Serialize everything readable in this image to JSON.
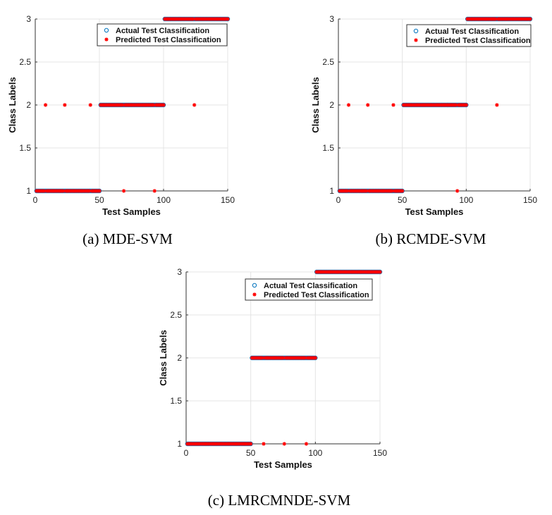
{
  "chart_data": [
    {
      "type": "scatter",
      "caption": "(a) MDE-SVM",
      "xlabel": "Test Samples",
      "ylabel": "Class Labels",
      "xlim": [
        0,
        150
      ],
      "ylim": [
        1,
        3
      ],
      "xticks": [
        "0",
        "50",
        "100",
        "150"
      ],
      "yticks": [
        "1",
        "1.5",
        "2",
        "2.5",
        "3"
      ],
      "grid": true,
      "legend_position": "top-right",
      "series": [
        {
          "name": "Actual Test Classification",
          "marker": "circle",
          "color": "#0072bd",
          "segments": [
            {
              "x_start": 1,
              "x_end": 50,
              "y": 1
            },
            {
              "x_start": 51,
              "x_end": 100,
              "y": 2
            },
            {
              "x_start": 101,
              "x_end": 150,
              "y": 3
            }
          ]
        },
        {
          "name": "Predicted Test Classification",
          "marker": "asterisk",
          "color": "#ff0000",
          "segments": [
            {
              "x_start": 1,
              "x_end": 50,
              "y": 1
            },
            {
              "x_start": 51,
              "x_end": 100,
              "y": 2
            },
            {
              "x_start": 101,
              "x_end": 150,
              "y": 3
            }
          ],
          "misclassified": [
            {
              "x": 8,
              "y": 2
            },
            {
              "x": 23,
              "y": 2
            },
            {
              "x": 43,
              "y": 2
            },
            {
              "x": 69,
              "y": 1
            },
            {
              "x": 93,
              "y": 1
            },
            {
              "x": 124,
              "y": 2
            }
          ]
        }
      ]
    },
    {
      "type": "scatter",
      "caption": "(b) RCMDE-SVM",
      "xlabel": "Test Samples",
      "ylabel": "Class Labels",
      "xlim": [
        0,
        150
      ],
      "ylim": [
        1,
        3
      ],
      "xticks": [
        "0",
        "50",
        "100",
        "150"
      ],
      "yticks": [
        "1",
        "1.5",
        "2",
        "2.5",
        "3"
      ],
      "grid": true,
      "legend_position": "top-right",
      "series": [
        {
          "name": "Actual Test Classification",
          "marker": "circle",
          "color": "#0072bd",
          "segments": [
            {
              "x_start": 1,
              "x_end": 50,
              "y": 1
            },
            {
              "x_start": 51,
              "x_end": 100,
              "y": 2
            },
            {
              "x_start": 101,
              "x_end": 150,
              "y": 3
            }
          ]
        },
        {
          "name": "Predicted Test Classification",
          "marker": "asterisk",
          "color": "#ff0000",
          "segments": [
            {
              "x_start": 1,
              "x_end": 50,
              "y": 1
            },
            {
              "x_start": 51,
              "x_end": 100,
              "y": 2
            },
            {
              "x_start": 101,
              "x_end": 150,
              "y": 3
            }
          ],
          "misclassified": [
            {
              "x": 8,
              "y": 2
            },
            {
              "x": 23,
              "y": 2
            },
            {
              "x": 43,
              "y": 2
            },
            {
              "x": 93,
              "y": 1
            },
            {
              "x": 124,
              "y": 2
            }
          ]
        }
      ]
    },
    {
      "type": "scatter",
      "caption": "(c) LMRCMNDE-SVM",
      "xlabel": "Test Samples",
      "ylabel": "Class Labels",
      "xlim": [
        0,
        150
      ],
      "ylim": [
        1,
        3
      ],
      "xticks": [
        "0",
        "50",
        "100",
        "150"
      ],
      "yticks": [
        "1",
        "1.5",
        "2",
        "2.5",
        "3"
      ],
      "grid": true,
      "legend_position": "top-right",
      "series": [
        {
          "name": "Actual Test Classification",
          "marker": "circle",
          "color": "#0072bd",
          "segments": [
            {
              "x_start": 1,
              "x_end": 50,
              "y": 1
            },
            {
              "x_start": 51,
              "x_end": 100,
              "y": 2
            },
            {
              "x_start": 101,
              "x_end": 150,
              "y": 3
            }
          ]
        },
        {
          "name": "Predicted Test Classification",
          "marker": "asterisk",
          "color": "#ff0000",
          "segments": [
            {
              "x_start": 1,
              "x_end": 50,
              "y": 1
            },
            {
              "x_start": 51,
              "x_end": 100,
              "y": 2
            },
            {
              "x_start": 101,
              "x_end": 150,
              "y": 3
            }
          ],
          "misclassified": [
            {
              "x": 60,
              "y": 1
            },
            {
              "x": 76,
              "y": 1
            },
            {
              "x": 93,
              "y": 1
            }
          ]
        }
      ]
    }
  ]
}
